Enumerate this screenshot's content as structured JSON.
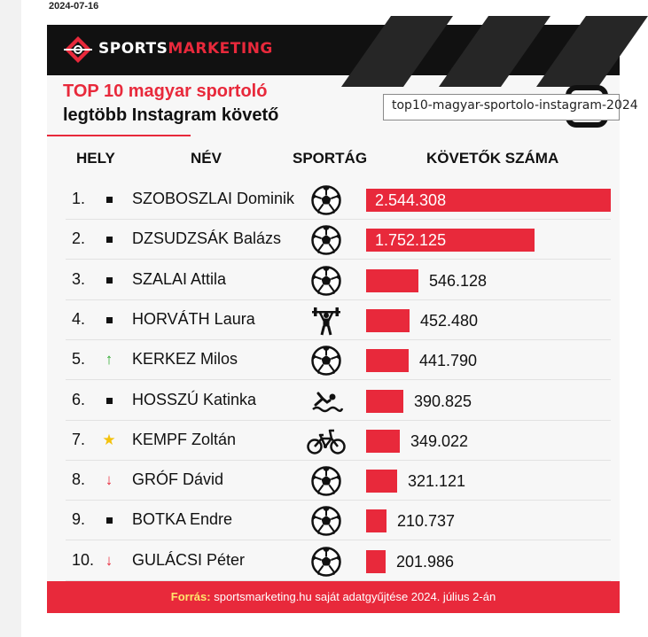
{
  "date": "2024-07-16",
  "brand": {
    "part1": "SPORTS",
    "part2": "MARKETING"
  },
  "title": {
    "line1": "TOP 10 magyar sportoló",
    "line2": "legtöbb Instagram követő"
  },
  "file_label": "top10-magyar-sportolo-instagram-2024",
  "headers": {
    "rank": "HELY",
    "name": "NÉV",
    "sport": "SPORTÁG",
    "followers": "KÖVETŐK SZÁMA"
  },
  "colors": {
    "accent": "#e8293b",
    "banner": "#111111",
    "up": "#2eaa2e",
    "star": "#f4c20d"
  },
  "chart_data": {
    "type": "bar",
    "title": "TOP 10 magyar sportoló legtöbb Instagram követő",
    "xlabel": "",
    "ylabel": "KÖVETŐK SZÁMA",
    "rows": [
      {
        "rank": "1.",
        "trend": "square",
        "name": "SZOBOSZLAI Dominik",
        "sport": "soccer-ball-icon",
        "value": 2544308,
        "label": "2.544.308"
      },
      {
        "rank": "2.",
        "trend": "square",
        "name": "DZSUDZSÁK Balázs",
        "sport": "soccer-ball-icon",
        "value": 1752125,
        "label": "1.752.125"
      },
      {
        "rank": "3.",
        "trend": "square",
        "name": "SZALAI Attila",
        "sport": "soccer-ball-icon",
        "value": 546128,
        "label": "546.128"
      },
      {
        "rank": "4.",
        "trend": "square",
        "name": "HORVÁTH Laura",
        "sport": "weightlifter-icon",
        "value": 452480,
        "label": "452.480"
      },
      {
        "rank": "5.",
        "trend": "up",
        "name": "KERKEZ Milos",
        "sport": "soccer-ball-icon",
        "value": 441790,
        "label": "441.790"
      },
      {
        "rank": "6.",
        "trend": "square",
        "name": "HOSSZÚ Katinka",
        "sport": "swimmer-icon",
        "value": 390825,
        "label": "390.825"
      },
      {
        "rank": "7.",
        "trend": "star",
        "name": "KEMPF Zoltán",
        "sport": "bmx-bike-icon",
        "value": 349022,
        "label": "349.022"
      },
      {
        "rank": "8.",
        "trend": "down",
        "name": "GRÓF Dávid",
        "sport": "soccer-ball-icon",
        "value": 321121,
        "label": "321.121"
      },
      {
        "rank": "9.",
        "trend": "square",
        "name": "BOTKA Endre",
        "sport": "soccer-ball-icon",
        "value": 210737,
        "label": "210.737"
      },
      {
        "rank": "10.",
        "trend": "down",
        "name": "GULÁCSI Péter",
        "sport": "soccer-ball-icon",
        "value": 201986,
        "label": "201.986"
      }
    ]
  },
  "footer": {
    "label": "Forrás:",
    "text": "sportsmarketing.hu saját adatgyűjtése 2024. július 2-án"
  }
}
